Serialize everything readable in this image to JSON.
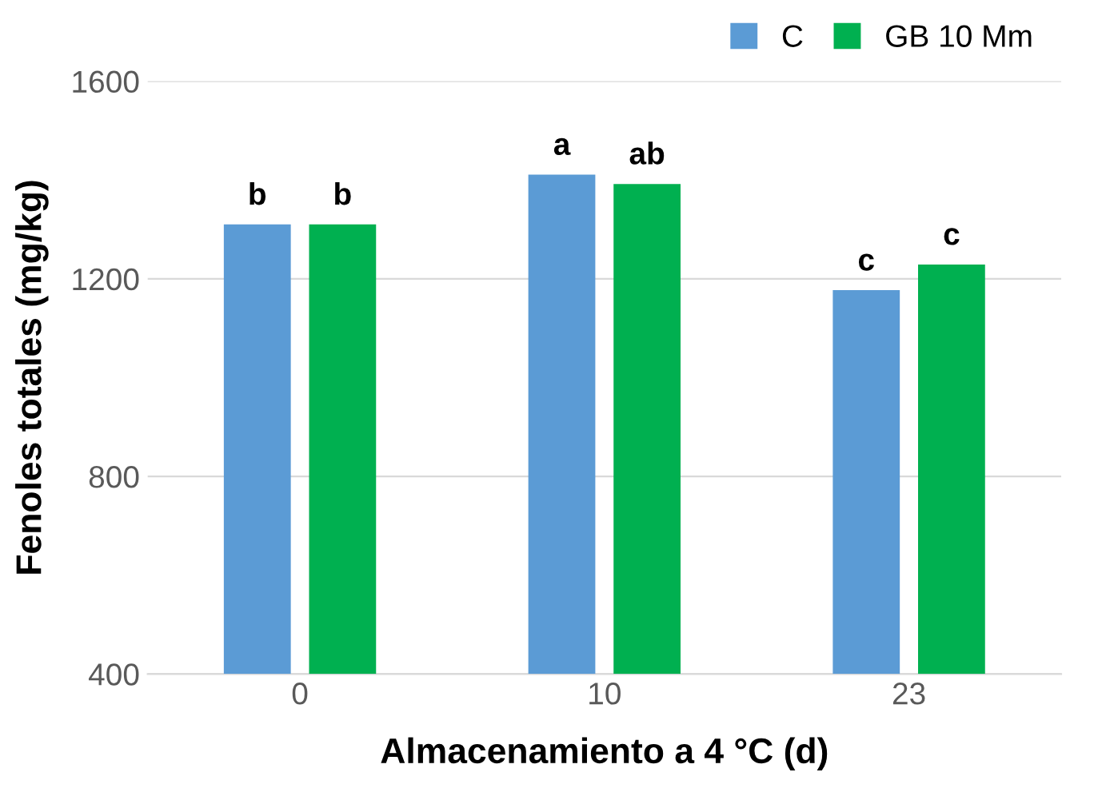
{
  "chart_data": {
    "type": "bar",
    "xlabel": "Almacenamiento a 4 °C (d)",
    "ylabel": "Fenoles totales (mg/kg)",
    "categories": [
      "0",
      "10",
      "23"
    ],
    "series": [
      {
        "name": "C",
        "color": "#5b9bd5",
        "values": [
          1310,
          1411,
          1177
        ],
        "value_labels": [
          "b",
          "a",
          "c"
        ]
      },
      {
        "name": "GB 10 Mm",
        "color": "#00b050",
        "values": [
          1310,
          1392,
          1229
        ],
        "value_labels": [
          "b",
          "ab",
          "c"
        ]
      }
    ],
    "ylim": [
      400,
      1600
    ],
    "yticks": [
      400,
      800,
      1200,
      1600
    ],
    "grid": "y",
    "legend": "top right"
  }
}
